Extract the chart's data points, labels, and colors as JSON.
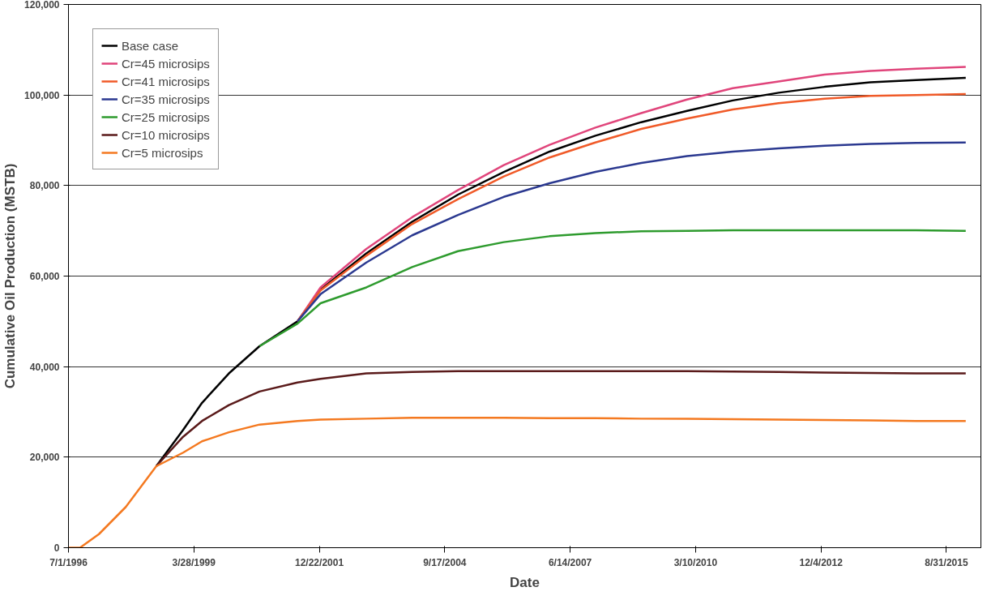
{
  "chart_data": {
    "type": "line",
    "xlabel": "Date",
    "ylabel": "Cumulative Oil Production (MSTB)",
    "x": [
      "1996-07-01",
      "1996-10-01",
      "1997-03-01",
      "1997-10-01",
      "1998-06-01",
      "1999-01-01",
      "1999-06-01",
      "2000-01-01",
      "2000-09-01",
      "2001-07-01",
      "2002-01-01",
      "2003-01-01",
      "2004-01-01",
      "2005-01-01",
      "2006-01-01",
      "2007-01-01",
      "2008-01-01",
      "2009-01-01",
      "2010-01-01",
      "2011-01-01",
      "2012-01-01",
      "2013-01-01",
      "2014-01-01",
      "2015-01-01",
      "2016-02-01"
    ],
    "series": [
      {
        "name": "Base case",
        "color": "#000000",
        "x": [
          "1998-06-01",
          "1999-01-01",
          "1999-06-01",
          "2000-01-01",
          "2000-09-01",
          "2001-07-01",
          "2002-01-01",
          "2003-01-01",
          "2004-01-01",
          "2005-01-01",
          "2006-01-01",
          "2007-01-01",
          "2008-01-01",
          "2009-01-01",
          "2010-01-01",
          "2011-01-01",
          "2012-01-01",
          "2013-01-01",
          "2014-01-01",
          "2015-01-01",
          "2016-02-01"
        ],
        "values": [
          18000,
          26000,
          32000,
          38500,
          44500,
          50000,
          57000,
          65000,
          72000,
          78000,
          83000,
          87500,
          91000,
          94000,
          96500,
          98800,
          100500,
          101800,
          102800,
          103300,
          103800
        ]
      },
      {
        "name": "Cr=45 microsips",
        "color": "#e0457b",
        "x": [
          "2001-07-01",
          "2002-01-01",
          "2003-01-01",
          "2004-01-01",
          "2005-01-01",
          "2006-01-01",
          "2007-01-01",
          "2008-01-01",
          "2009-01-01",
          "2010-01-01",
          "2011-01-01",
          "2012-01-01",
          "2013-01-01",
          "2014-01-01",
          "2015-01-01",
          "2016-02-01"
        ],
        "values": [
          50000,
          57500,
          66000,
          73000,
          79000,
          84500,
          89000,
          92800,
          96000,
          99000,
          101500,
          103000,
          104500,
          105300,
          105800,
          106200
        ]
      },
      {
        "name": "Cr=41 microsips",
        "color": "#f05a28",
        "x": [
          "2001-07-01",
          "2002-01-01",
          "2003-01-01",
          "2004-01-01",
          "2005-01-01",
          "2006-01-01",
          "2007-01-01",
          "2008-01-01",
          "2009-01-01",
          "2010-01-01",
          "2011-01-01",
          "2012-01-01",
          "2013-01-01",
          "2014-01-01",
          "2015-01-01",
          "2016-02-01"
        ],
        "values": [
          50000,
          56800,
          64500,
          71500,
          77000,
          82000,
          86200,
          89500,
          92500,
          94800,
          96800,
          98200,
          99200,
          99800,
          100000,
          100200
        ]
      },
      {
        "name": "Cr=35 microsips",
        "color": "#2b3990",
        "x": [
          "2001-07-01",
          "2002-01-01",
          "2003-01-01",
          "2004-01-01",
          "2005-01-01",
          "2006-01-01",
          "2007-01-01",
          "2008-01-01",
          "2009-01-01",
          "2010-01-01",
          "2011-01-01",
          "2012-01-01",
          "2013-01-01",
          "2014-01-01",
          "2015-01-01",
          "2016-02-01"
        ],
        "values": [
          50000,
          56000,
          63000,
          69000,
          73500,
          77500,
          80500,
          83000,
          85000,
          86500,
          87500,
          88200,
          88800,
          89200,
          89400,
          89500
        ]
      },
      {
        "name": "Cr=25 microsips",
        "color": "#2e9b2e",
        "x": [
          "2000-09-01",
          "2001-07-01",
          "2002-01-01",
          "2003-01-01",
          "2004-01-01",
          "2005-01-01",
          "2006-01-01",
          "2007-01-01",
          "2008-01-01",
          "2009-01-01",
          "2010-01-01",
          "2011-01-01",
          "2012-01-01",
          "2013-01-01",
          "2014-01-01",
          "2015-01-01",
          "2016-02-01"
        ],
        "values": [
          44500,
          49500,
          54000,
          57500,
          62000,
          65500,
          67500,
          68800,
          69500,
          69900,
          70000,
          70100,
          70100,
          70100,
          70100,
          70100,
          70000
        ]
      },
      {
        "name": "Cr=10 microsips",
        "color": "#5a1a1a",
        "x": [
          "1998-06-01",
          "1999-01-01",
          "1999-06-01",
          "2000-01-01",
          "2000-09-01",
          "2001-07-01",
          "2002-01-01",
          "2003-01-01",
          "2004-01-01",
          "2005-01-01",
          "2006-01-01",
          "2007-01-01",
          "2008-01-01",
          "2009-01-01",
          "2010-01-01",
          "2011-01-01",
          "2012-01-01",
          "2013-01-01",
          "2014-01-01",
          "2015-01-01",
          "2016-02-01"
        ],
        "values": [
          18000,
          24500,
          28000,
          31500,
          34500,
          36500,
          37300,
          38500,
          38800,
          39000,
          39000,
          39000,
          39000,
          39000,
          39000,
          38900,
          38800,
          38700,
          38600,
          38500,
          38500
        ]
      },
      {
        "name": "Cr=5 microsips",
        "color": "#f47920",
        "values": [
          0,
          0,
          3000,
          9000,
          18000,
          21000,
          23500,
          25500,
          27200,
          28000,
          28300,
          28500,
          28700,
          28700,
          28700,
          28600,
          28600,
          28500,
          28500,
          28400,
          28300,
          28200,
          28100,
          28000,
          28000
        ]
      }
    ],
    "xlim": [
      "1996-07-01",
      "2016-06-01"
    ],
    "xticks": [
      {
        "value": "1996-07-01",
        "label": "7/1/1996"
      },
      {
        "value": "1999-03-28",
        "label": "3/28/1999"
      },
      {
        "value": "2001-12-22",
        "label": "12/22/2001"
      },
      {
        "value": "2004-09-17",
        "label": "9/17/2004"
      },
      {
        "value": "2007-06-14",
        "label": "6/14/2007"
      },
      {
        "value": "2010-03-10",
        "label": "3/10/2010"
      },
      {
        "value": "2012-12-04",
        "label": "12/4/2012"
      },
      {
        "value": "2015-08-31",
        "label": "8/31/2015"
      }
    ],
    "ylim": [
      0,
      120000
    ],
    "yticks": [
      {
        "value": 0,
        "label": "0"
      },
      {
        "value": 20000,
        "label": "20,000"
      },
      {
        "value": 40000,
        "label": "40,000"
      },
      {
        "value": 60000,
        "label": "60,000"
      },
      {
        "value": 80000,
        "label": "80,000"
      },
      {
        "value": 100000,
        "label": "100,000"
      },
      {
        "value": 120000,
        "label": "120,000"
      }
    ],
    "grid": "y",
    "legend": "top left",
    "marker": "none",
    "line_style": "solid"
  }
}
